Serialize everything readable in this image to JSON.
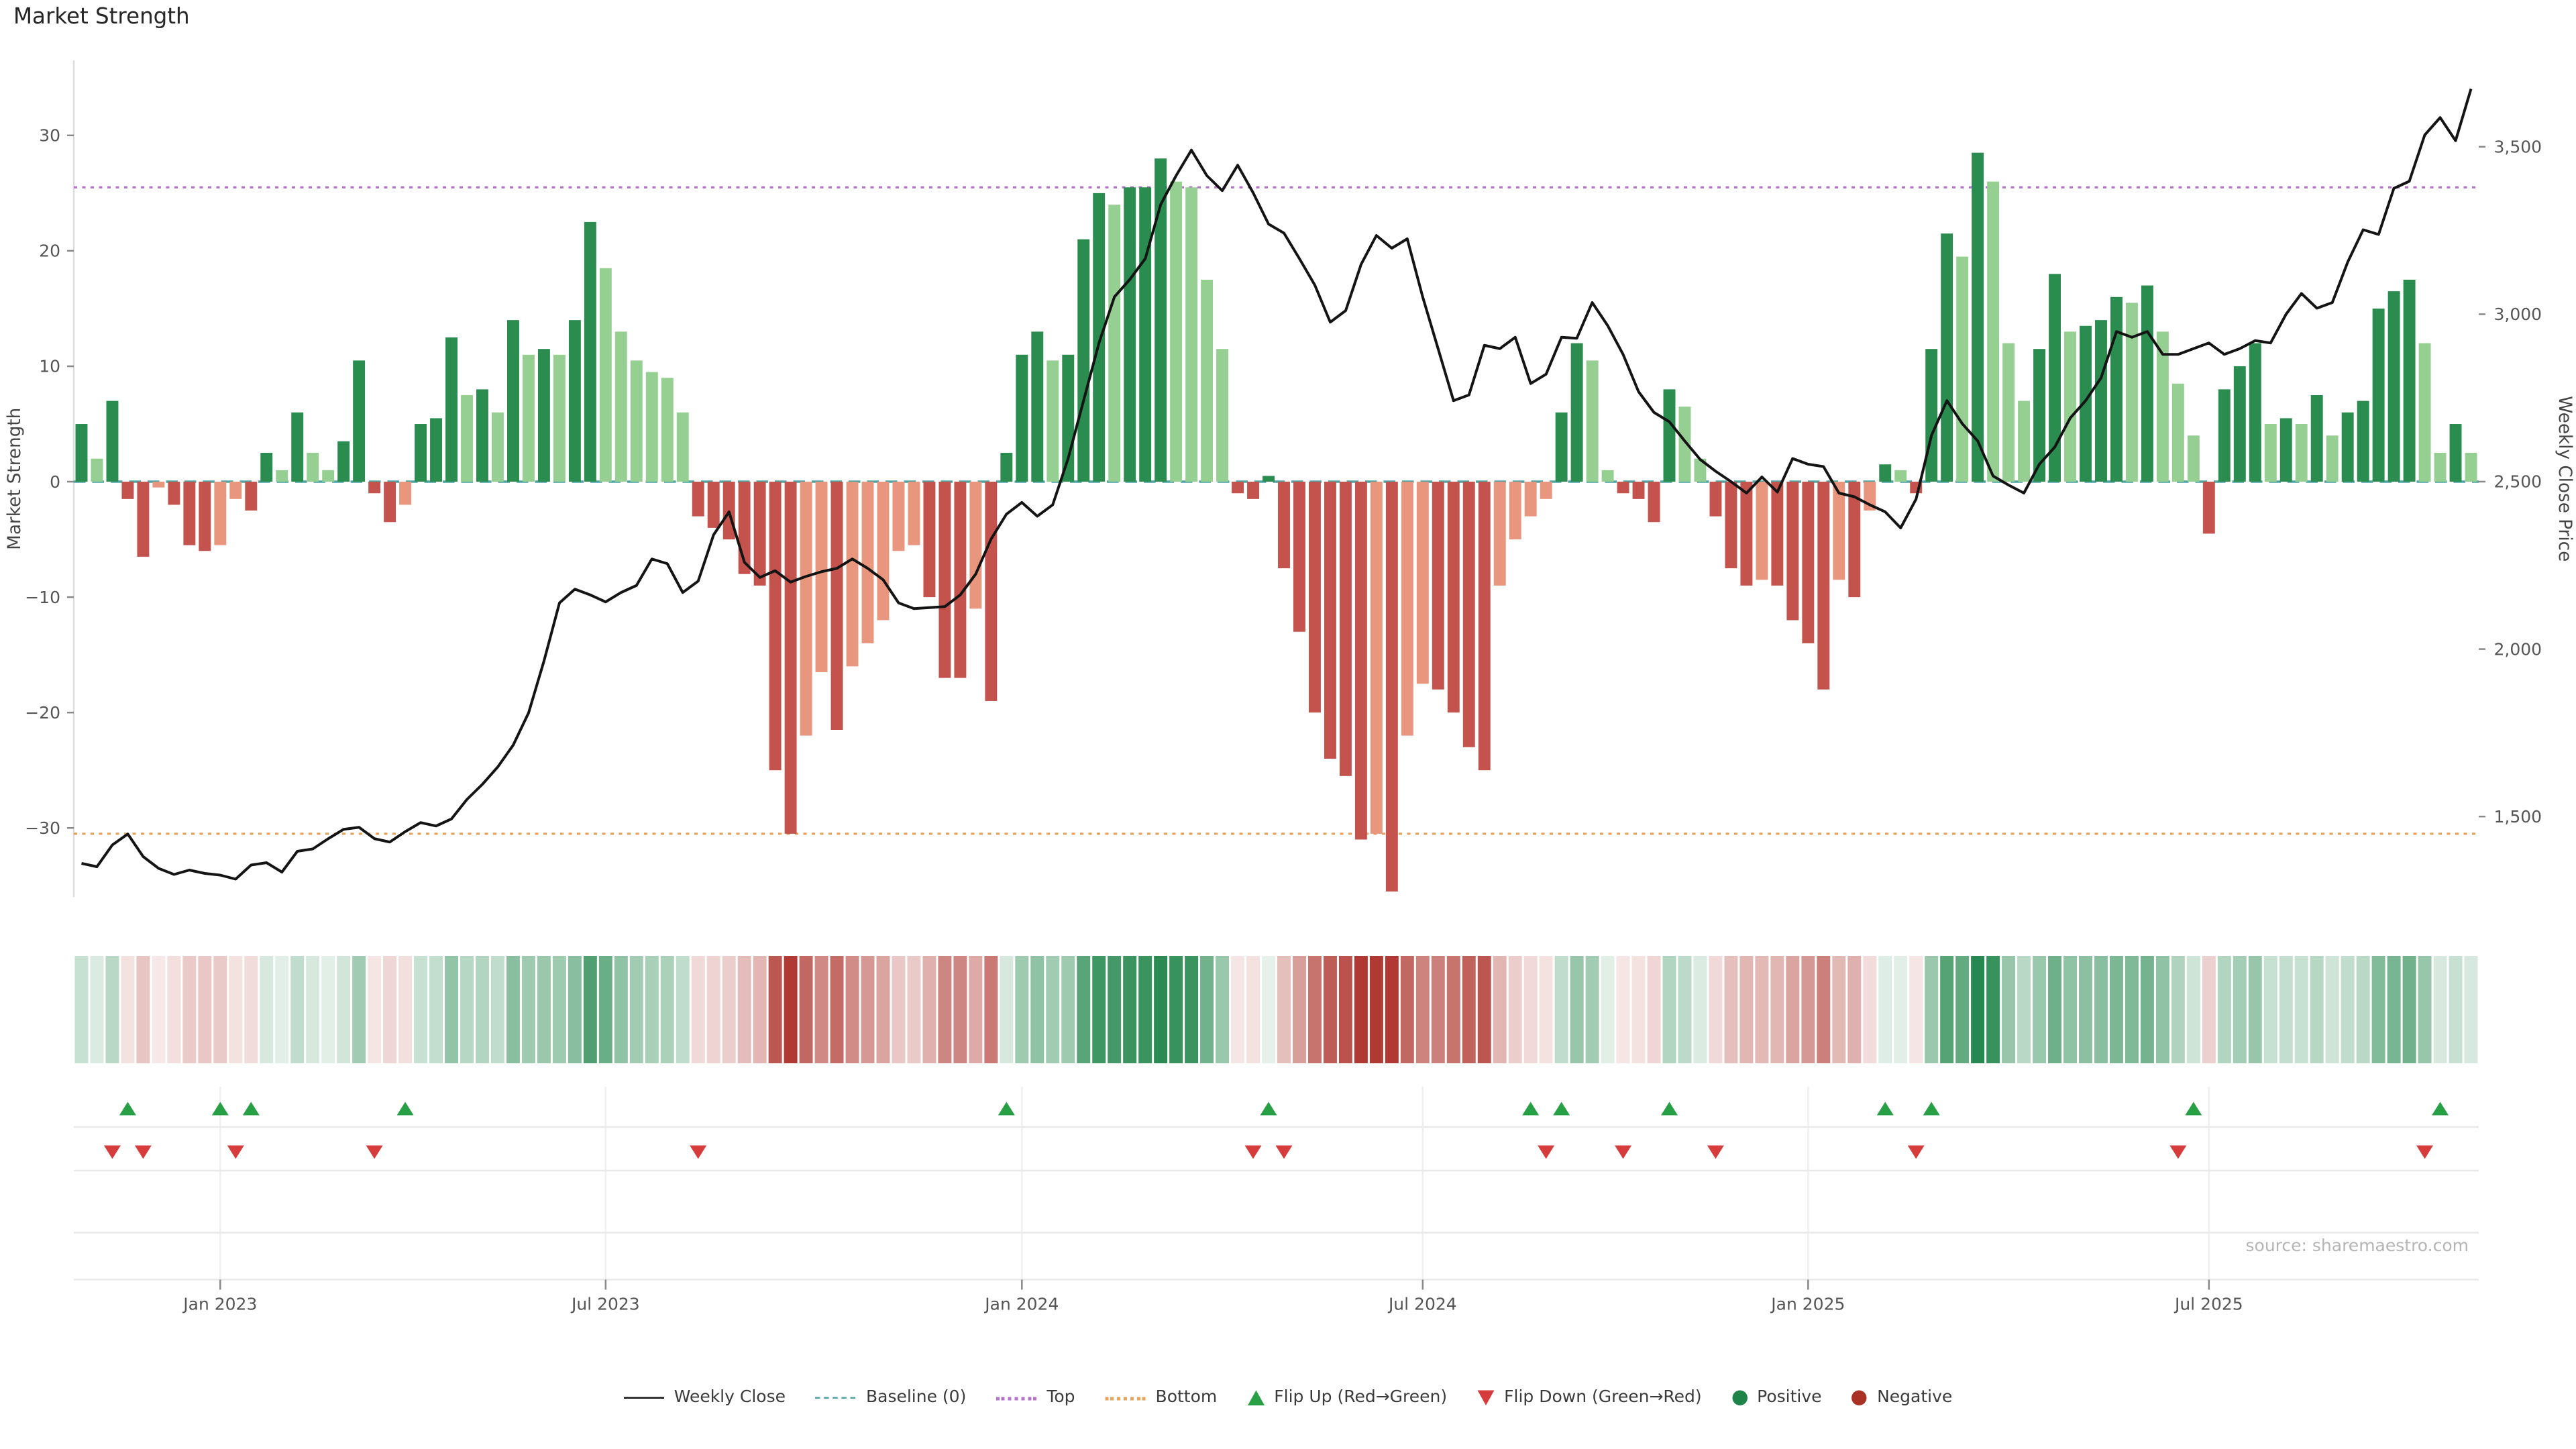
{
  "title": "Market Strength",
  "colors": {
    "bar_green_dark": "#2a8c4f",
    "bar_green_light": "#96cf92",
    "bar_red_dark": "#c4534e",
    "bar_red_light": "#e9967f",
    "heat_green": "#1e8449",
    "heat_red": "#b03a33",
    "line": "#141414",
    "baseline": "#4fa3a2",
    "top_line": "#b574c9",
    "bottom_line": "#e9a35c",
    "flip_up": "#27a045",
    "flip_down": "#d73c3c",
    "positive_dot": "#1d8348",
    "negative_dot": "#a93226"
  },
  "chart_data": {
    "type": "combo_bar_line_heatmap",
    "title": "Market Strength",
    "ylabel_left": "Market Strength",
    "ylabel_right": "Weekly Close Price",
    "source": "source: sharemaestro.com",
    "frequency": "weekly",
    "start_date": "2022-11-06",
    "weeks": 156,
    "strength_axis_range": [
      -36,
      36.5
    ],
    "price_axis_range": [
      1259,
      3758
    ],
    "left_ticks": [
      30,
      20,
      10,
      0,
      -10,
      -20,
      -30
    ],
    "right_ticks": [
      {
        "label": "3,500",
        "value": 3500
      },
      {
        "label": "3,000",
        "value": 3000
      },
      {
        "label": "2,500",
        "value": 2500
      },
      {
        "label": "2,000",
        "value": 2000
      },
      {
        "label": "1,500",
        "value": 1500
      }
    ],
    "x_tick_labels": [
      {
        "label": "Jan 2023",
        "week": 9
      },
      {
        "label": "Jul 2023",
        "week": 34
      },
      {
        "label": "Jan 2024",
        "week": 61
      },
      {
        "label": "Jul 2024",
        "week": 87
      },
      {
        "label": "Jan 2025",
        "week": 112
      },
      {
        "label": "Jul 2025",
        "week": 138
      }
    ],
    "reference_lines": {
      "baseline": 0,
      "top": 25.5,
      "bottom": -30.5
    },
    "strength": [
      5,
      2,
      7,
      -1.5,
      -6.5,
      -0.5,
      -2,
      -5.5,
      -6,
      -5.5,
      -1.5,
      -2.5,
      2.5,
      1,
      6,
      2.5,
      1,
      3.5,
      10.5,
      -1,
      -3.5,
      -2,
      5,
      5.5,
      12.5,
      7.5,
      8,
      6,
      14,
      11,
      11.5,
      11,
      14,
      22.5,
      18.5,
      13,
      10.5,
      9.5,
      9,
      6,
      -3,
      -4,
      -5,
      -8,
      -9,
      -25,
      -30.5,
      -22,
      -16.5,
      -21.5,
      -16,
      -14,
      -12,
      -6,
      -5.5,
      -10,
      -17,
      -17,
      -11,
      -19,
      2.5,
      11,
      13,
      10.5,
      11,
      21,
      25,
      24,
      25.5,
      25.5,
      28,
      26,
      25.5,
      17.5,
      11.5,
      -1,
      -1.5,
      0.5,
      -7.5,
      -13,
      -20,
      -24,
      -25.5,
      -31,
      -30.5,
      -35.5,
      -22,
      -17.5,
      -18,
      -20,
      -23,
      -25,
      -9,
      -5,
      -3,
      -1.5,
      6,
      12,
      10.5,
      1,
      -1,
      -1.5,
      -3.5,
      8,
      6.5,
      2,
      -3,
      -7.5,
      -9,
      -8.5,
      -9,
      -12,
      -14,
      -18,
      -8.5,
      -10,
      -2.5,
      1.5,
      1,
      -1,
      11.5,
      21.5,
      19.5,
      28.5,
      26,
      12,
      7,
      11.5,
      18,
      13,
      13.5,
      14,
      16,
      15.5,
      17,
      13,
      8.5,
      4,
      -4.5,
      8,
      10,
      12,
      5,
      5.5,
      5,
      7.5,
      4,
      6,
      7,
      15,
      16.5,
      17.5,
      12,
      2.5,
      5,
      2.5
    ],
    "weekly_close": [
      1360,
      1350,
      1415,
      1448,
      1380,
      1345,
      1327,
      1340,
      1330,
      1325,
      1313,
      1355,
      1362,
      1334,
      1396,
      1403,
      1434,
      1462,
      1468,
      1434,
      1424,
      1455,
      1482,
      1472,
      1493,
      1551,
      1596,
      1648,
      1713,
      1810,
      1965,
      2138,
      2179,
      2162,
      2141,
      2169,
      2190,
      2269,
      2255,
      2169,
      2203,
      2341,
      2410,
      2259,
      2214,
      2234,
      2200,
      2217,
      2231,
      2241,
      2269,
      2241,
      2207,
      2138,
      2121,
      2124,
      2127,
      2162,
      2224,
      2328,
      2403,
      2438,
      2397,
      2431,
      2569,
      2742,
      2914,
      3052,
      3104,
      3166,
      3328,
      3414,
      3490,
      3414,
      3369,
      3445,
      3363,
      3269,
      3242,
      3166,
      3087,
      2976,
      3011,
      3149,
      3235,
      3197,
      3225,
      3052,
      2897,
      2742,
      2759,
      2907,
      2897,
      2931,
      2793,
      2821,
      2931,
      2928,
      3035,
      2966,
      2880,
      2769,
      2707,
      2679,
      2621,
      2566,
      2531,
      2500,
      2466,
      2514,
      2469,
      2569,
      2552,
      2545,
      2466,
      2455,
      2431,
      2410,
      2362,
      2448,
      2638,
      2742,
      2673,
      2621,
      2517,
      2490,
      2466,
      2552,
      2603,
      2690,
      2742,
      2810,
      2948,
      2931,
      2948,
      2880,
      2880,
      2897,
      2914,
      2880,
      2897,
      2921,
      2914,
      3000,
      3062,
      3018,
      3035,
      3156,
      3252,
      3238,
      3376,
      3397,
      3535,
      3587,
      3518,
      3673
    ],
    "flip_up_weeks": [
      3,
      9,
      11,
      21,
      60,
      77,
      94,
      96,
      103,
      117,
      120,
      137,
      153
    ],
    "flip_down_weeks": [
      2,
      4,
      10,
      19,
      40,
      76,
      78,
      95,
      100,
      106,
      119,
      136,
      152
    ],
    "legend": [
      {
        "type": "line",
        "color": "#141414",
        "label": "Weekly Close"
      },
      {
        "type": "dashed",
        "color": "#4fa3a2",
        "label": "Baseline (0)"
      },
      {
        "type": "dotted",
        "color": "#b574c9",
        "label": "Top"
      },
      {
        "type": "dotted",
        "color": "#e9a35c",
        "label": "Bottom"
      },
      {
        "type": "triangle-up",
        "color": "#27a045",
        "label": "Flip Up (Red→Green)"
      },
      {
        "type": "triangle-down",
        "color": "#d73c3c",
        "label": "Flip Down (Green→Red)"
      },
      {
        "type": "circle",
        "color": "#1d8348",
        "label": "Positive"
      },
      {
        "type": "circle",
        "color": "#a93226",
        "label": "Negative"
      }
    ]
  }
}
